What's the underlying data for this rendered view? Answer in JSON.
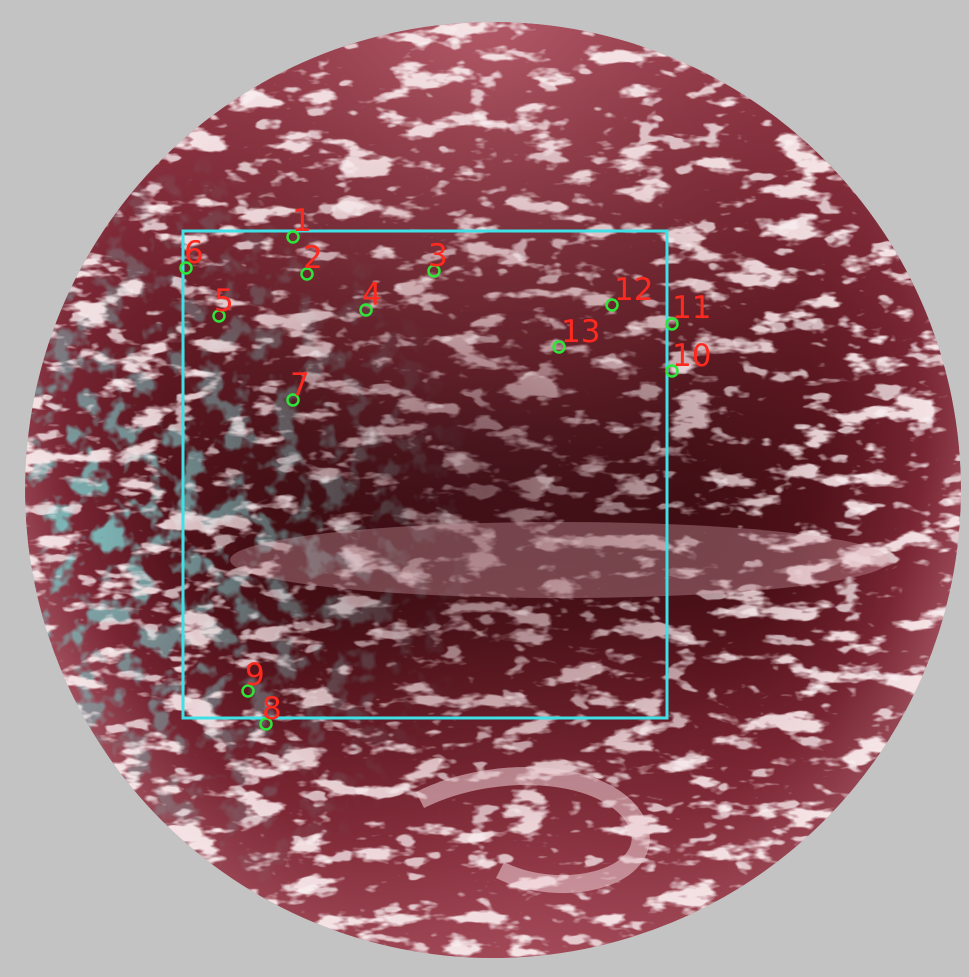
{
  "colors": {
    "background": "#c3c3c3",
    "ocean_deep": "#2b0609",
    "ocean_mid": "#6a1b26",
    "ocean_rim": "#a85665",
    "cloud": "#e9c6cc",
    "cloud_cyan": "#3b7c7c",
    "roi_box": "#3fe0e6",
    "marker_circle": "#2ee63a",
    "marker_label": "#ff2a1f"
  },
  "markers": [
    {
      "id": "1",
      "label": "1"
    },
    {
      "id": "2",
      "label": "2"
    },
    {
      "id": "3",
      "label": "3"
    },
    {
      "id": "4",
      "label": "4"
    },
    {
      "id": "5",
      "label": "5"
    },
    {
      "id": "6",
      "label": "6"
    },
    {
      "id": "7",
      "label": "7"
    },
    {
      "id": "8",
      "label": "8"
    },
    {
      "id": "9",
      "label": "9"
    },
    {
      "id": "10",
      "label": "10"
    },
    {
      "id": "11",
      "label": "11"
    },
    {
      "id": "12",
      "label": "12"
    },
    {
      "id": "13",
      "label": "13"
    }
  ]
}
